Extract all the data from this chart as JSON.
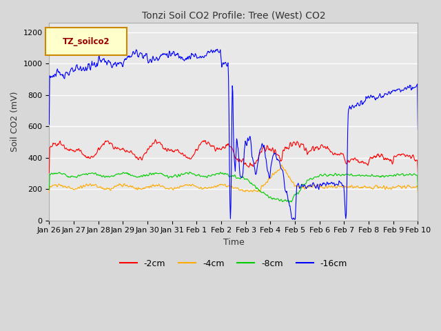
{
  "title": "Tonzi Soil CO2 Profile: Tree (West) CO2",
  "xlabel": "Time",
  "ylabel": "Soil CO2 (mV)",
  "ylim": [
    0,
    1260
  ],
  "yticks": [
    0,
    200,
    400,
    600,
    800,
    1000,
    1200
  ],
  "x_labels": [
    "Jan 26",
    "Jan 27",
    "Jan 28",
    "Jan 29",
    "Jan 30",
    "Jan 31",
    "Feb 1",
    "Feb 2",
    "Feb 3",
    "Feb 4",
    "Feb 5",
    "Feb 6",
    "Feb 7",
    "Feb 8",
    "Feb 9",
    "Feb 10"
  ],
  "fig_bg_color": "#d8d8d8",
  "plot_bg_color": "#e8e8e8",
  "grid_color": "#ffffff",
  "legend_label": "TZ_soilco2",
  "legend_bg": "#ffffcc",
  "legend_border": "#cc8800",
  "legend_text_color": "#990000",
  "series_colors": {
    "-2cm": "#ff0000",
    "-4cm": "#ffaa00",
    "-8cm": "#00cc00",
    "-16cm": "#0000ff"
  },
  "series_linewidth": 0.8,
  "title_fontsize": 10,
  "axis_label_fontsize": 9,
  "tick_fontsize": 8
}
